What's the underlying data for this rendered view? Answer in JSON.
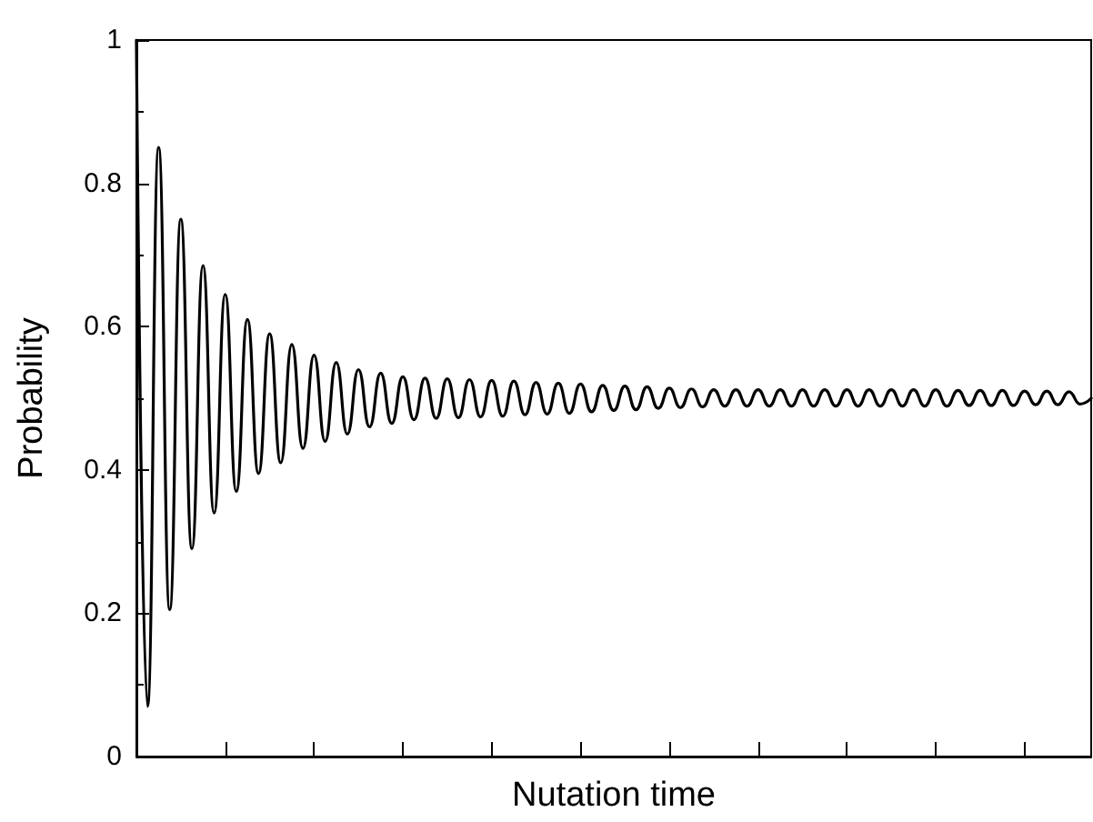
{
  "chart_data": {
    "type": "line",
    "xlabel": "Nutation time",
    "ylabel": "Probability",
    "categories": [
      null,
      null,
      null,
      null,
      null,
      null,
      null,
      null,
      null,
      null,
      null,
      null,
      null,
      null,
      null,
      null,
      null,
      null,
      null,
      null,
      null,
      null,
      null,
      null,
      null,
      null,
      null,
      null,
      null,
      null,
      null,
      null,
      null,
      null,
      null,
      null,
      null,
      null,
      null,
      null,
      null,
      null,
      null,
      null,
      null,
      null,
      null,
      null,
      null,
      null,
      null,
      null,
      null,
      null,
      null,
      null,
      null,
      null,
      null,
      null,
      null,
      null,
      null,
      null,
      null,
      null,
      null,
      null,
      null,
      null,
      null,
      null,
      null,
      null,
      null,
      null,
      null,
      null,
      null,
      null,
      null,
      null,
      null,
      null,
      null,
      null,
      null
    ],
    "values": [
      1.0,
      0.07,
      0.85,
      0.205,
      0.75,
      0.29,
      0.685,
      0.34,
      0.645,
      0.37,
      0.61,
      0.395,
      0.59,
      0.41,
      0.575,
      0.43,
      0.56,
      0.44,
      0.55,
      0.45,
      0.54,
      0.46,
      0.535,
      0.465,
      0.53,
      0.47,
      0.528,
      0.472,
      0.527,
      0.473,
      0.526,
      0.474,
      0.525,
      0.475,
      0.524,
      0.477,
      0.522,
      0.478,
      0.521,
      0.479,
      0.52,
      0.481,
      0.518,
      0.483,
      0.517,
      0.484,
      0.516,
      0.486,
      0.514,
      0.487,
      0.513,
      0.488,
      0.512,
      0.489,
      0.512,
      0.489,
      0.512,
      0.489,
      0.512,
      0.489,
      0.512,
      0.489,
      0.512,
      0.489,
      0.512,
      0.489,
      0.512,
      0.489,
      0.512,
      0.489,
      0.512,
      0.489,
      0.512,
      0.489,
      0.511,
      0.49,
      0.511,
      0.49,
      0.511,
      0.49,
      0.51,
      0.491,
      0.51,
      0.491,
      0.509,
      0.492,
      0.5
    ],
    "color": "#000000",
    "ylim": [
      0,
      1
    ],
    "yticks": [
      0,
      0.2,
      0.4,
      0.6,
      0.8,
      1
    ],
    "tick_labels": "y",
    "line_style": "solid"
  }
}
